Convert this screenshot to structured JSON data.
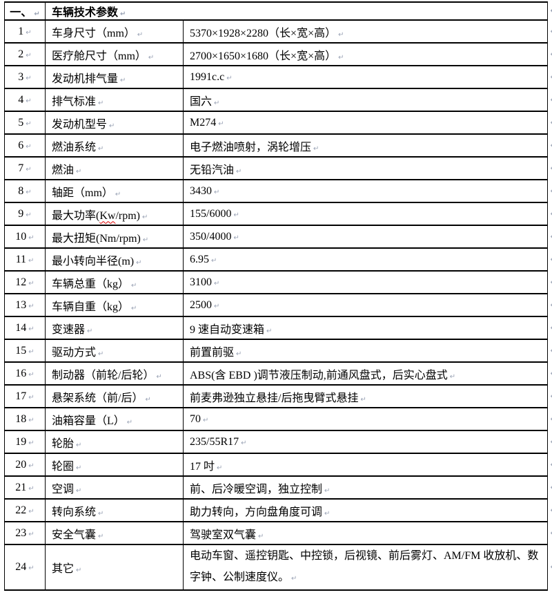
{
  "header": {
    "section_no": "一、",
    "section_title": "车辆技术参数"
  },
  "marks": {
    "paragraph_mark": "↵"
  },
  "table": {
    "rows": [
      {
        "num": "1",
        "label": "车身尺寸（mm）",
        "value": "5370×1928×2280（长×宽×高）"
      },
      {
        "num": "2",
        "label": "医疗舱尺寸（mm）",
        "value": "2700×1650×1680（长×宽×高）"
      },
      {
        "num": "3",
        "label": "发动机排气量",
        "value": "1991c.c"
      },
      {
        "num": "4",
        "label": "排气标准",
        "value": "国六"
      },
      {
        "num": "5",
        "label": "发动机型号",
        "value": "M274"
      },
      {
        "num": "6",
        "label": "燃油系统",
        "value": "电子燃油喷射，涡轮增压"
      },
      {
        "num": "7",
        "label": "燃油",
        "value": "无铅汽油"
      },
      {
        "num": "8",
        "label": "轴距（mm）",
        "value": "3430"
      },
      {
        "num": "9",
        "label": "最大功率(Kw/rpm)",
        "value": "155/6000",
        "squiggle_under": "Kw"
      },
      {
        "num": "10",
        "label": "最大扭矩(Nm/rpm)",
        "value": "350/4000"
      },
      {
        "num": "11",
        "label": "最小转向半径(m)",
        "value": "6.95"
      },
      {
        "num": "12",
        "label": "车辆总重（kg）",
        "value": "3100"
      },
      {
        "num": "13",
        "label": "车辆自重（kg）",
        "value": "2500"
      },
      {
        "num": "14",
        "label": "变速器",
        "value": "9 速自动变速箱"
      },
      {
        "num": "15",
        "label": "驱动方式",
        "value": "前置前驱"
      },
      {
        "num": "16",
        "label": "制动器（前轮/后轮）",
        "value": "ABS(含 EBD )调节液压制动,前通风盘式，后实心盘式"
      },
      {
        "num": "17",
        "label": "悬架系统（前/后）",
        "value": "前麦弗逊独立悬挂/后拖曳臂式悬挂"
      },
      {
        "num": "18",
        "label": "油箱容量（L）",
        "value": "70"
      },
      {
        "num": "19",
        "label": "轮胎",
        "value": "235/55R17"
      },
      {
        "num": "20",
        "label": "轮圈",
        "value": "17 吋"
      },
      {
        "num": "21",
        "label": "空调",
        "value": "前、后冷暖空调，独立控制"
      },
      {
        "num": "22",
        "label": "转向系统",
        "value": "助力转向，方向盘角度可调"
      },
      {
        "num": "23",
        "label": "安全气囊",
        "value": "驾驶室双气囊"
      },
      {
        "num": "24",
        "label": "其它",
        "value": "电动车窗、遥控钥匙、中控锁，后视镜、前后雾灯、AM/FM 收放机、数字钟、公制速度仪。",
        "tall": true
      }
    ]
  }
}
